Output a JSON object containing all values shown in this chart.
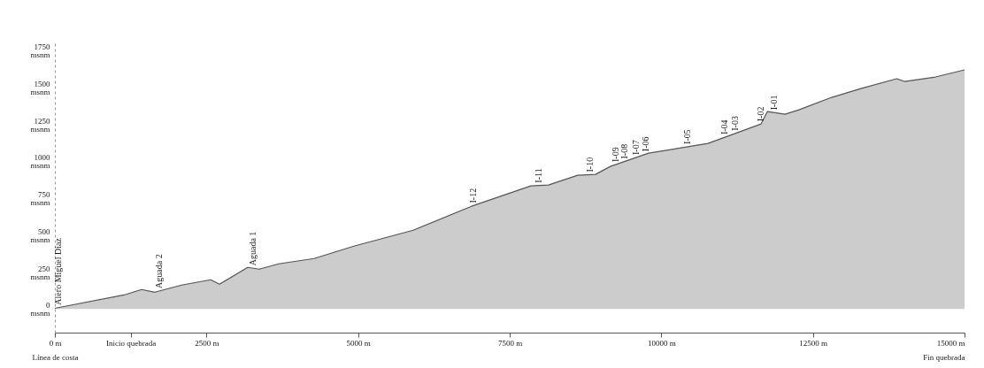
{
  "chart_data": {
    "type": "area",
    "x": [
      0,
      1140,
      1430,
      1650,
      2090,
      2570,
      2715,
      3180,
      3370,
      3690,
      4275,
      4930,
      5910,
      6870,
      7850,
      8140,
      8620,
      8915,
      9160,
      9790,
      10770,
      11645,
      11750,
      12040,
      12270,
      12810,
      13290,
      13880,
      14010,
      14520,
      15000
    ],
    "series": [
      {
        "color": "#555555",
        "values": [
          5,
          95,
          132,
          114,
          162,
          198,
          168,
          282,
          270,
          306,
          342,
          426,
          534,
          696,
          834,
          840,
          906,
          912,
          966,
          1056,
          1122,
          1254,
          1338,
          1320,
          1350,
          1434,
          1494,
          1560,
          1542,
          1572,
          1620
        ]
      }
    ],
    "xlim": [
      0,
      15000
    ],
    "xticks": [
      {
        "value": 0,
        "label": "0 m\nLínea de costa"
      },
      {
        "value": 1250,
        "label": "Inicio quebrada"
      },
      {
        "value": 2500,
        "label": "2500 m"
      },
      {
        "value": 5000,
        "label": "5000 m"
      },
      {
        "value": 7500,
        "label": "7500 m"
      },
      {
        "value": 10000,
        "label": "10000 m"
      },
      {
        "value": 12500,
        "label": "12500 m"
      },
      {
        "value": 15000,
        "label": "15000 m\nFin quebrada"
      }
    ],
    "ylim": [
      -160,
      1800
    ],
    "yticks": [
      {
        "value": 0,
        "label": "0 msnm"
      },
      {
        "value": 250,
        "label": "250 msnm"
      },
      {
        "value": 500,
        "label": "500 msnm"
      },
      {
        "value": 750,
        "label": "750 msnm"
      },
      {
        "value": 1000,
        "label": "1000 msnm"
      },
      {
        "value": 1250,
        "label": "1250 msnm"
      },
      {
        "value": 1500,
        "label": "1500 msnm"
      },
      {
        "value": 1750,
        "label": "1750 msnm"
      }
    ],
    "annotations": [
      {
        "text": "Alero Miguel Diaz",
        "x": 60,
        "y": 10
      },
      {
        "text": "Aguada 2",
        "x": 1720,
        "y": 122
      },
      {
        "text": "Aguada 1",
        "x": 3270,
        "y": 276
      },
      {
        "text": "I-12",
        "x": 6900,
        "y": 700
      },
      {
        "text": "I-11",
        "x": 7980,
        "y": 837
      },
      {
        "text": "I-10",
        "x": 8830,
        "y": 910
      },
      {
        "text": "I-09",
        "x": 9250,
        "y": 979
      },
      {
        "text": "I-08",
        "x": 9400,
        "y": 1000
      },
      {
        "text": "I-07",
        "x": 9590,
        "y": 1027
      },
      {
        "text": "I-06",
        "x": 9750,
        "y": 1050
      },
      {
        "text": "I-05",
        "x": 10430,
        "y": 1099
      },
      {
        "text": "I-04",
        "x": 11050,
        "y": 1164
      },
      {
        "text": "I-03",
        "x": 11220,
        "y": 1190
      },
      {
        "text": "I-02",
        "x": 11640,
        "y": 1253
      },
      {
        "text": "I-01",
        "x": 11860,
        "y": 1331
      }
    ]
  }
}
